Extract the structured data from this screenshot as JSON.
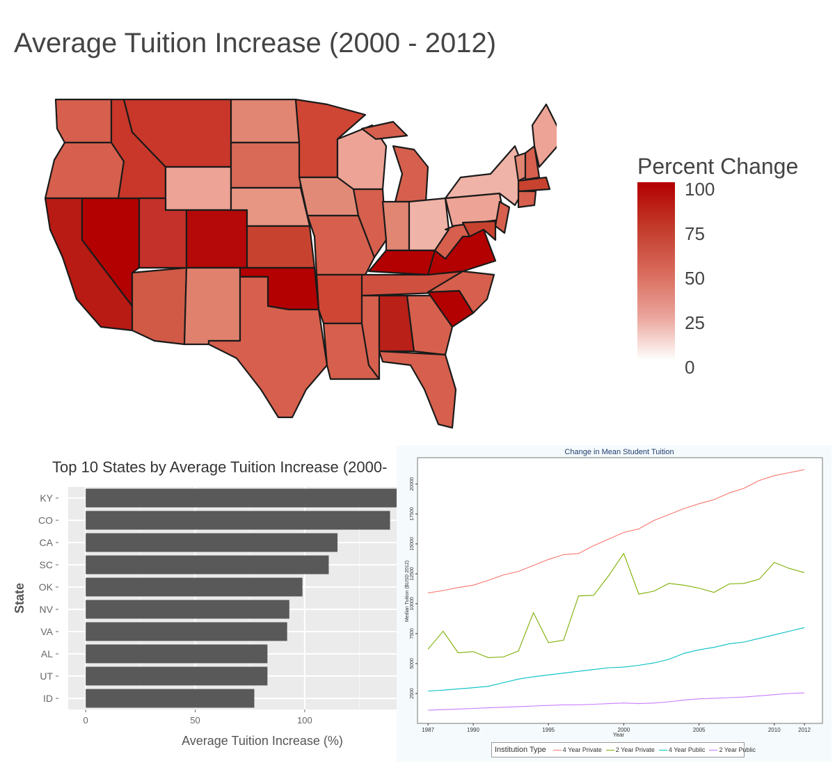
{
  "map": {
    "title": "Average Tuition Increase (2000 - 2012)",
    "legend_title": "Percent Change",
    "legend_ticks": [
      "100",
      "75",
      "50",
      "25",
      "0"
    ]
  },
  "chart_data": [
    {
      "type": "bar",
      "title": "Top 10 States by Average Tuition Increase (2000-",
      "xlabel": "Average Tuition Increase (%)",
      "ylabel": "State",
      "categories": [
        "KY",
        "CO",
        "CA",
        "SC",
        "OK",
        "NV",
        "VA",
        "AL",
        "UT",
        "ID"
      ],
      "values": [
        145,
        139,
        115,
        111,
        99,
        93,
        92,
        83,
        83,
        77
      ],
      "xlim": [
        -8,
        142
      ],
      "x_ticks": [
        0,
        50,
        100
      ],
      "bar_color": "#595959"
    },
    {
      "type": "line",
      "title": "Change in Mean Student Tuition",
      "xlabel": "Year",
      "ylabel": "Median Tuition ($USD 2012)",
      "x_ticks": [
        1987,
        1990,
        1995,
        2000,
        2005,
        2010,
        2012
      ],
      "y_ticks": [
        2500,
        5000,
        7500,
        10000,
        12500,
        15000,
        17500,
        20000
      ],
      "legend_title": "Institution Type",
      "series": [
        {
          "name": "4 Year Private",
          "color": "#f8766d",
          "x": [
            1987,
            1988,
            1989,
            1990,
            1991,
            1992,
            1993,
            1994,
            1995,
            1996,
            1997,
            1998,
            1999,
            2000,
            2001,
            2002,
            2003,
            2004,
            2005,
            2006,
            2007,
            2008,
            2009,
            2010,
            2011,
            2012
          ],
          "y": [
            10900,
            11100,
            11350,
            11550,
            11950,
            12400,
            12700,
            13200,
            13700,
            14100,
            14200,
            14850,
            15400,
            15950,
            16250,
            16950,
            17450,
            17950,
            18350,
            18700,
            19250,
            19650,
            20300,
            20700,
            20950,
            21200
          ]
        },
        {
          "name": "2 Year Private",
          "color": "#7cae00",
          "x": [
            1987,
            1988,
            1989,
            1990,
            1991,
            1992,
            1993,
            1994,
            1995,
            1996,
            1997,
            1998,
            1999,
            2000,
            2001,
            2002,
            2003,
            2004,
            2005,
            2006,
            2007,
            2008,
            2009,
            2010,
            2011,
            2012
          ],
          "y": [
            6200,
            7700,
            5900,
            6000,
            5500,
            5550,
            6050,
            9250,
            6750,
            6950,
            10650,
            10700,
            12350,
            14200,
            10800,
            11050,
            11700,
            11550,
            11300,
            10950,
            11650,
            11700,
            12050,
            13450,
            12950,
            12600
          ]
        },
        {
          "name": "4 Year Public",
          "color": "#00bfc4",
          "x": [
            1987,
            1988,
            1989,
            1990,
            1991,
            1992,
            1993,
            1994,
            1995,
            1996,
            1997,
            1998,
            1999,
            2000,
            2001,
            2002,
            2003,
            2004,
            2005,
            2006,
            2007,
            2008,
            2009,
            2010,
            2011,
            2012
          ],
          "y": [
            2700,
            2780,
            2880,
            2980,
            3100,
            3400,
            3700,
            3900,
            4050,
            4200,
            4350,
            4500,
            4650,
            4700,
            4850,
            5050,
            5350,
            5850,
            6150,
            6350,
            6650,
            6800,
            7100,
            7400,
            7700,
            8000
          ]
        },
        {
          "name": "2 Year Public",
          "color": "#c77cff",
          "x": [
            1987,
            1988,
            1989,
            1990,
            1991,
            1992,
            1993,
            1994,
            1995,
            1996,
            1997,
            1998,
            1999,
            2000,
            2001,
            2002,
            2003,
            2004,
            2005,
            2006,
            2007,
            2008,
            2009,
            2010,
            2011,
            2012
          ],
          "y": [
            1100,
            1150,
            1200,
            1250,
            1300,
            1350,
            1400,
            1450,
            1500,
            1550,
            1550,
            1600,
            1650,
            1700,
            1650,
            1700,
            1800,
            1950,
            2050,
            2100,
            2150,
            2200,
            2300,
            2400,
            2500,
            2550
          ]
        }
      ]
    }
  ]
}
